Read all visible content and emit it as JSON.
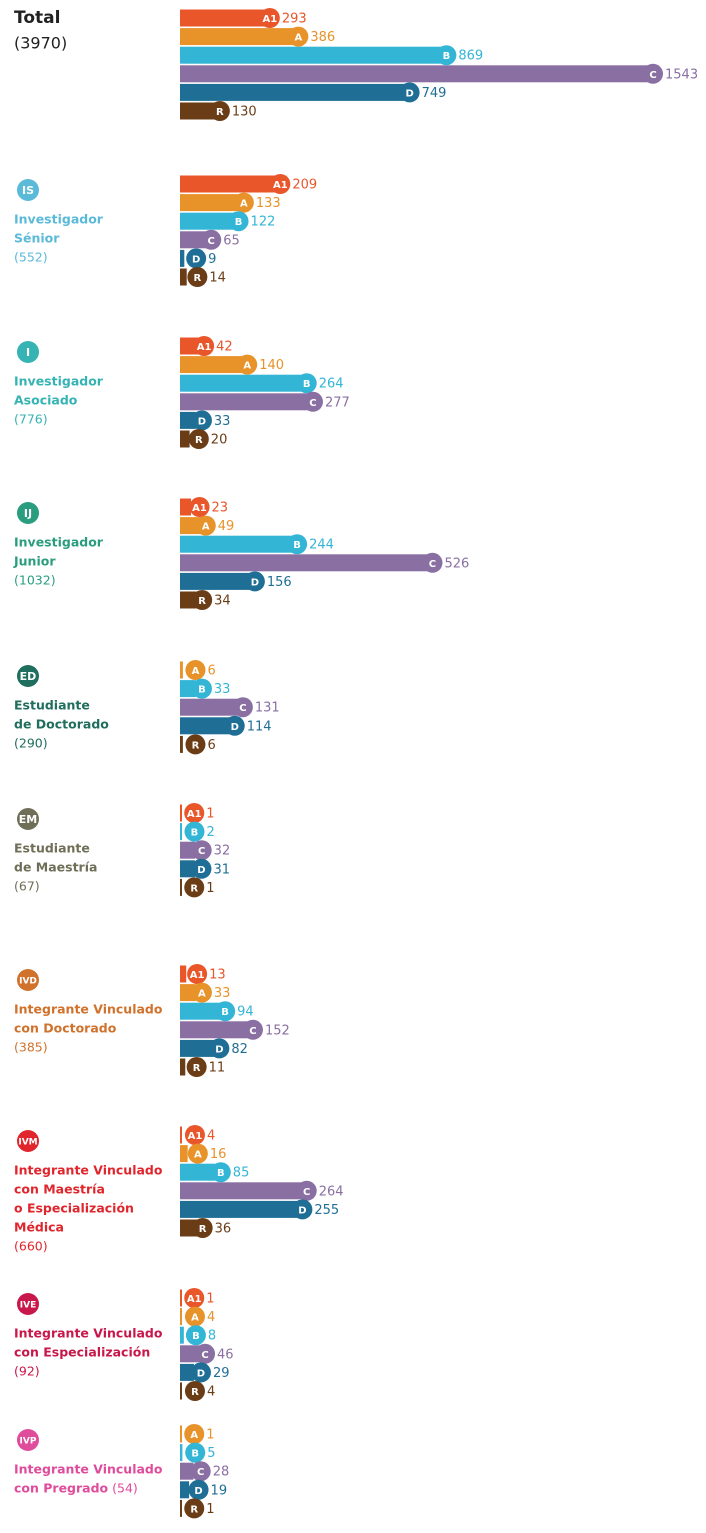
{
  "chart_data": {
    "type": "bar",
    "category_colors": {
      "A1": "#e8562a",
      "A": "#e8922a",
      "B": "#33b5d6",
      "C": "#8a6fa3",
      "D": "#1f6e96",
      "R": "#6b3d17"
    },
    "groups": [
      {
        "lines": [
          "Total"
        ],
        "total": "(3970)",
        "color": "#222222",
        "bars": [
          {
            "category": "A1",
            "value": 293
          },
          {
            "category": "A",
            "value": 386
          },
          {
            "category": "B",
            "value": 869
          },
          {
            "category": "C",
            "value": 1543
          },
          {
            "category": "D",
            "value": 749
          },
          {
            "category": "R",
            "value": 130
          }
        ]
      },
      {
        "badge": "IS",
        "lines": [
          "Investigador",
          "Sénior"
        ],
        "total": "(552)",
        "color": "#5bbad8",
        "bars": [
          {
            "category": "A1",
            "value": 209
          },
          {
            "category": "A",
            "value": 133
          },
          {
            "category": "B",
            "value": 122
          },
          {
            "category": "C",
            "value": 65
          },
          {
            "category": "D",
            "value": 9
          },
          {
            "category": "R",
            "value": 14
          }
        ]
      },
      {
        "badge": "I",
        "lines": [
          "Investigador",
          "Asociado"
        ],
        "total": "(776)",
        "color": "#36b3b3",
        "bars": [
          {
            "category": "A1",
            "value": 42
          },
          {
            "category": "A",
            "value": 140
          },
          {
            "category": "B",
            "value": 264
          },
          {
            "category": "C",
            "value": 277
          },
          {
            "category": "D",
            "value": 33
          },
          {
            "category": "R",
            "value": 20
          }
        ]
      },
      {
        "badge": "IJ",
        "lines": [
          "Investigador",
          "Junior"
        ],
        "total": "(1032)",
        "color": "#2a9d7f",
        "bars": [
          {
            "category": "A1",
            "value": 23
          },
          {
            "category": "A",
            "value": 49
          },
          {
            "category": "B",
            "value": 244
          },
          {
            "category": "C",
            "value": 526
          },
          {
            "category": "D",
            "value": 156
          },
          {
            "category": "R",
            "value": 34
          }
        ]
      },
      {
        "badge": "ED",
        "lines": [
          "Estudiante",
          "de Doctorado"
        ],
        "total": "(290)",
        "color": "#1f6e5e",
        "bars": [
          {
            "category": "A",
            "value": 6
          },
          {
            "category": "B",
            "value": 33
          },
          {
            "category": "C",
            "value": 131
          },
          {
            "category": "D",
            "value": 114
          },
          {
            "category": "R",
            "value": 6
          }
        ]
      },
      {
        "badge": "EM",
        "lines": [
          "Estudiante",
          "de Maestría"
        ],
        "total": "(67)",
        "color": "#6f6f58",
        "bars": [
          {
            "category": "A1",
            "value": 1
          },
          {
            "category": "B",
            "value": 2
          },
          {
            "category": "C",
            "value": 32
          },
          {
            "category": "D",
            "value": 31
          },
          {
            "category": "R",
            "value": 1
          }
        ]
      },
      {
        "badge": "IVD",
        "lines": [
          "Integrante Vinculado",
          "con Doctorado"
        ],
        "total": "(385)",
        "color": "#d0722c",
        "bars": [
          {
            "category": "A1",
            "value": 13
          },
          {
            "category": "A",
            "value": 33
          },
          {
            "category": "B",
            "value": 94
          },
          {
            "category": "C",
            "value": 152
          },
          {
            "category": "D",
            "value": 82
          },
          {
            "category": "R",
            "value": 11
          }
        ]
      },
      {
        "badge": "IVM",
        "lines": [
          "Integrante Vinculado",
          "con Maestría",
          "o Especialización",
          "Médica"
        ],
        "total": "(660)",
        "color": "#e0262c",
        "bars": [
          {
            "category": "A1",
            "value": 4
          },
          {
            "category": "A",
            "value": 16
          },
          {
            "category": "B",
            "value": 85
          },
          {
            "category": "C",
            "value": 264
          },
          {
            "category": "D",
            "value": 255
          },
          {
            "category": "R",
            "value": 36
          }
        ]
      },
      {
        "badge": "IVE",
        "lines": [
          "Integrante Vinculado",
          "con Especialización"
        ],
        "total": "(92)",
        "color": "#c8174a",
        "bars": [
          {
            "category": "A1",
            "value": 1
          },
          {
            "category": "A",
            "value": 4
          },
          {
            "category": "B",
            "value": 8
          },
          {
            "category": "C",
            "value": 46
          },
          {
            "category": "D",
            "value": 29
          },
          {
            "category": "R",
            "value": 4
          }
        ]
      },
      {
        "badge": "IVP",
        "lines": [
          "Integrante Vinculado",
          "con Pregrado"
        ],
        "total": "(54)",
        "total_inline": true,
        "color": "#e04c9c",
        "bars": [
          {
            "category": "A",
            "value": 1
          },
          {
            "category": "B",
            "value": 5
          },
          {
            "category": "C",
            "value": 28
          },
          {
            "category": "D",
            "value": 19
          },
          {
            "category": "R",
            "value": 1
          }
        ]
      }
    ]
  }
}
